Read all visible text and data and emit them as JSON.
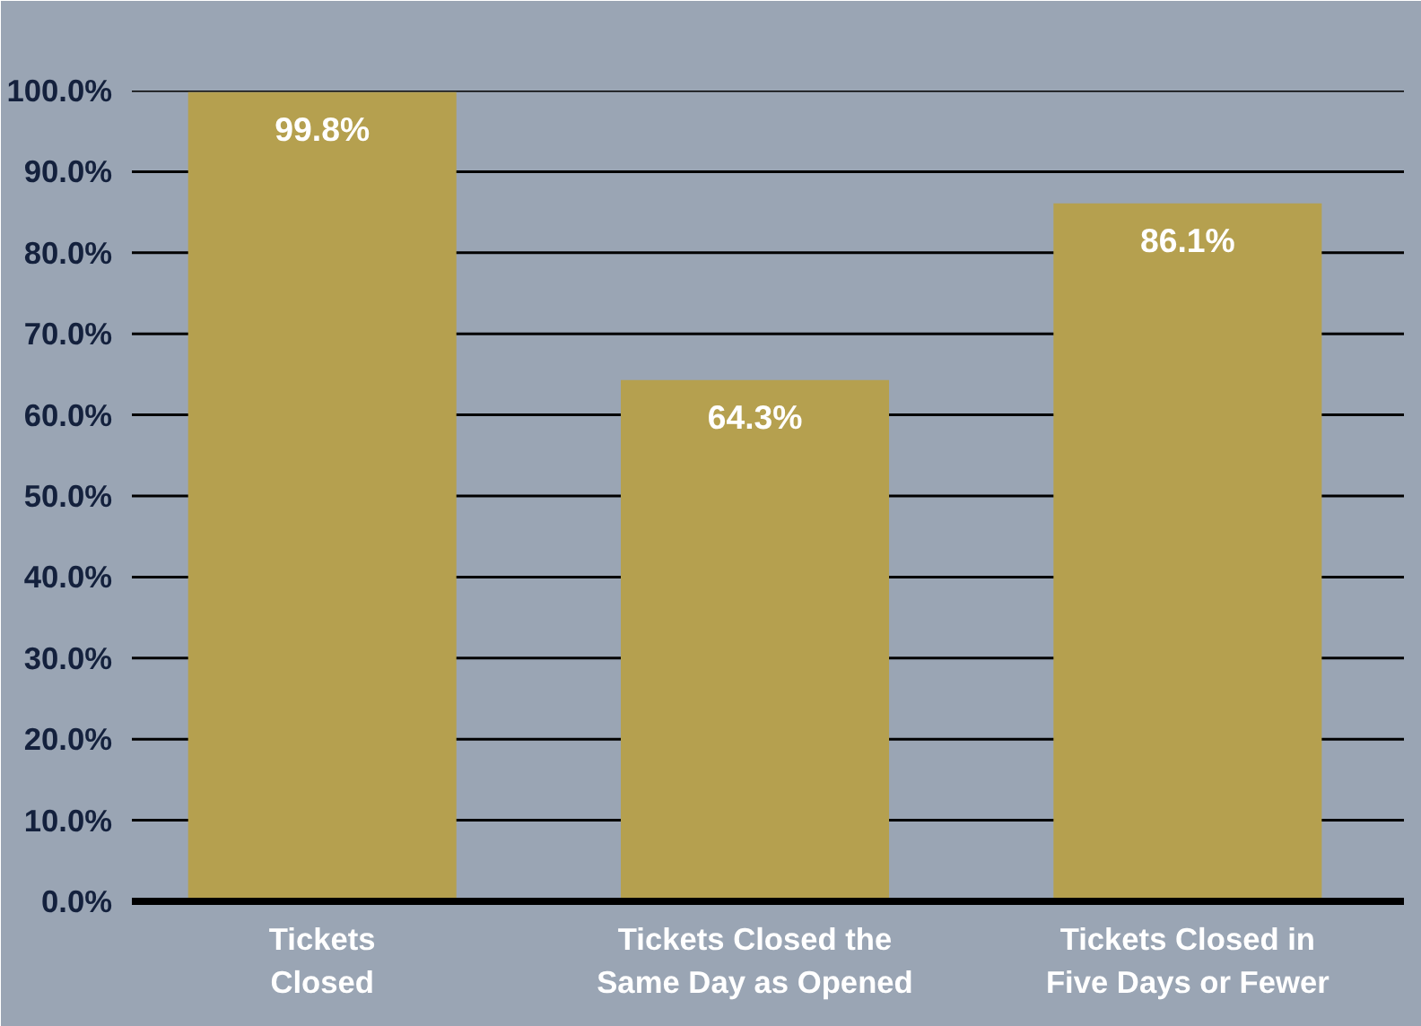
{
  "chart_data": {
    "type": "bar",
    "categories": [
      "Tickets Closed",
      "Tickets Closed the Same Day as Opened",
      "Tickets Closed in Five Days or Fewer"
    ],
    "values": [
      99.8,
      64.3,
      86.1
    ],
    "value_labels": [
      "99.8%",
      "64.3%",
      "86.1%"
    ],
    "color": "#b5a04f",
    "ylim": [
      0,
      100
    ],
    "yticks": [
      {
        "value": 0,
        "label": "0.0%"
      },
      {
        "value": 10,
        "label": "10.0%"
      },
      {
        "value": 20,
        "label": "20.0%"
      },
      {
        "value": 30,
        "label": "30.0%"
      },
      {
        "value": 40,
        "label": "40.0%"
      },
      {
        "value": 50,
        "label": "50.0%"
      },
      {
        "value": 60,
        "label": "60.0%"
      },
      {
        "value": 70,
        "label": "70.0%"
      },
      {
        "value": 80,
        "label": "80.0%"
      },
      {
        "value": 90,
        "label": "90.0%"
      },
      {
        "value": 100,
        "label": "100.0%"
      }
    ],
    "grid": "y"
  }
}
